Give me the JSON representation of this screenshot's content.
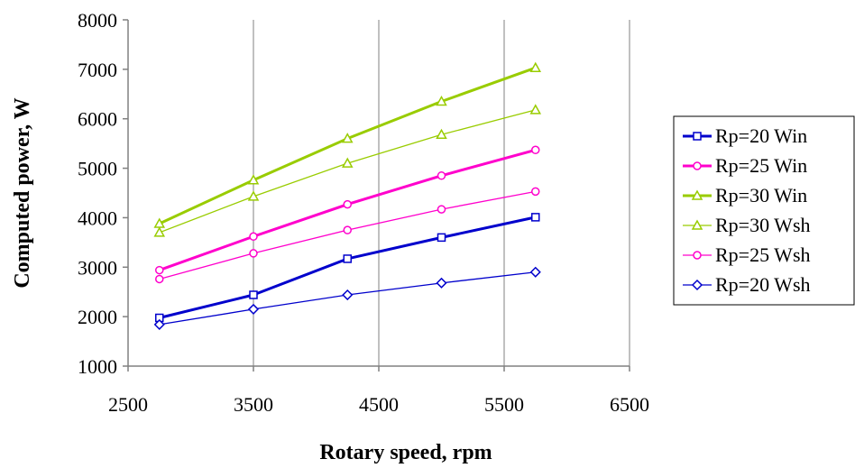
{
  "chart_data": {
    "type": "line",
    "title": "",
    "xlabel": "Rotary speed, rpm",
    "ylabel": "Computed power, W",
    "xlim": [
      2500,
      6500
    ],
    "ylim": [
      1000,
      8000
    ],
    "xticks": [
      2500,
      3500,
      4500,
      5500,
      6500
    ],
    "yticks": [
      1000,
      2000,
      3000,
      4000,
      5000,
      6000,
      7000,
      8000
    ],
    "grid": "vertical",
    "legend_position": "right",
    "series": [
      {
        "name": "Rp=20 Win",
        "color": "#0000cc",
        "marker": "square",
        "line": "thick",
        "x": [
          2750,
          3500,
          4250,
          5000,
          5750
        ],
        "y": [
          1975,
          2440,
          3170,
          3600,
          4010
        ]
      },
      {
        "name": "Rp=25 Win",
        "color": "#ff00cc",
        "marker": "circle",
        "line": "thick",
        "x": [
          2750,
          3500,
          4250,
          5000,
          5750
        ],
        "y": [
          2940,
          3620,
          4270,
          4850,
          5370
        ]
      },
      {
        "name": "Rp=30 Win",
        "color": "#99cc00",
        "marker": "triangle",
        "line": "thick",
        "x": [
          2750,
          3500,
          4250,
          5000,
          5750
        ],
        "y": [
          3880,
          4760,
          5600,
          6350,
          7030
        ]
      },
      {
        "name": "Rp=30 Wsh",
        "color": "#99cc00",
        "marker": "triangle",
        "line": "thin",
        "x": [
          2750,
          3500,
          4250,
          5000,
          5750
        ],
        "y": [
          3700,
          4430,
          5100,
          5680,
          6180
        ]
      },
      {
        "name": "Rp=25 Wsh",
        "color": "#ff00cc",
        "marker": "circle",
        "line": "thin",
        "x": [
          2750,
          3500,
          4250,
          5000,
          5750
        ],
        "y": [
          2760,
          3280,
          3750,
          4170,
          4530
        ]
      },
      {
        "name": "Rp=20 Wsh",
        "color": "#0000cc",
        "marker": "diamond",
        "line": "thin",
        "x": [
          2750,
          3500,
          4250,
          5000,
          5750
        ],
        "y": [
          1840,
          2150,
          2440,
          2680,
          2900
        ]
      }
    ]
  }
}
